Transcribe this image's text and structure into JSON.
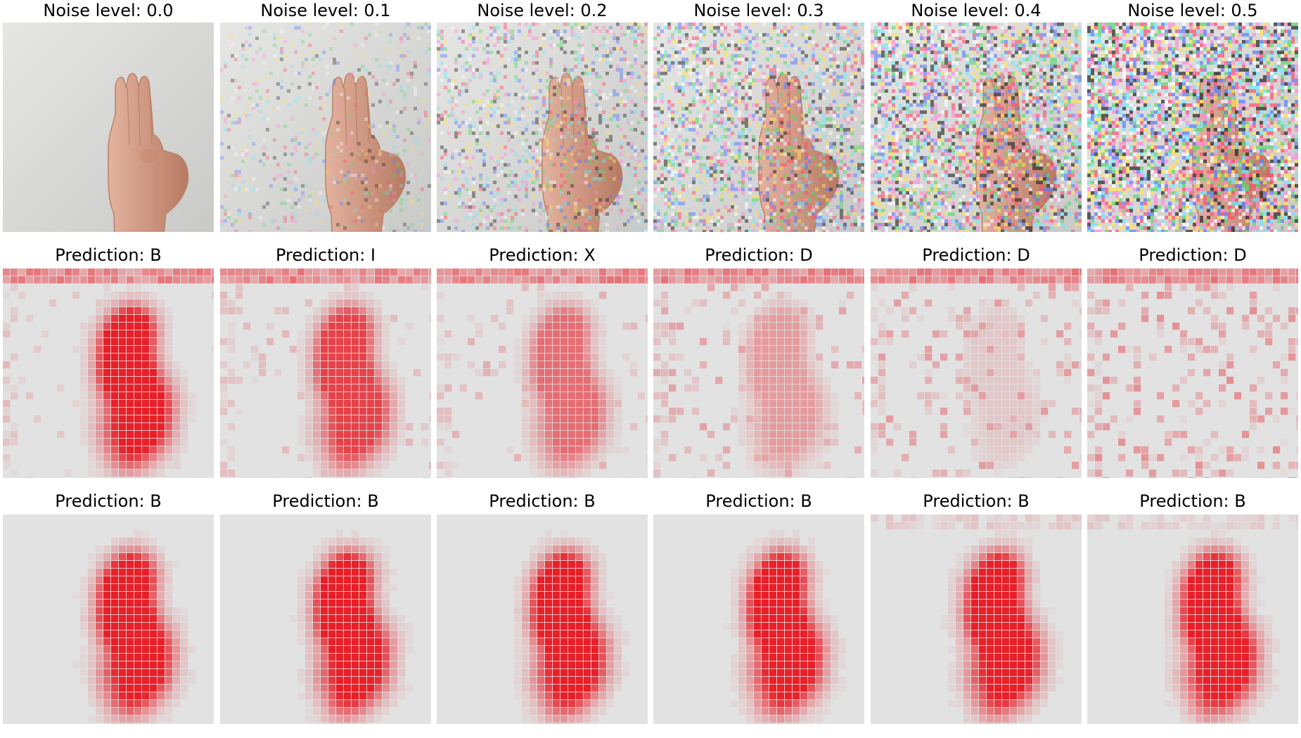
{
  "palette": {
    "background": "#ffffff",
    "wall": "#d4d4d2",
    "skin": "#d5a088",
    "skin_shadow": "#b77a63",
    "heat_base": "#dddddd",
    "heat_red": "#e8141e"
  },
  "rows": [
    {
      "kind": "noisy-input",
      "panels": [
        {
          "title": "Noise level: 0.0",
          "noise": 0.0
        },
        {
          "title": "Noise level: 0.1",
          "noise": 0.1
        },
        {
          "title": "Noise level: 0.2",
          "noise": 0.2
        },
        {
          "title": "Noise level: 0.3",
          "noise": 0.3
        },
        {
          "title": "Noise level: 0.4",
          "noise": 0.4
        },
        {
          "title": "Noise level: 0.5",
          "noise": 0.5
        }
      ]
    },
    {
      "kind": "baseline-saliency",
      "panels": [
        {
          "title": "Prediction: B",
          "noise": 0.0
        },
        {
          "title": "Prediction: I",
          "noise": 0.1
        },
        {
          "title": "Prediction: X",
          "noise": 0.2
        },
        {
          "title": "Prediction: D",
          "noise": 0.3
        },
        {
          "title": "Prediction: D",
          "noise": 0.4
        },
        {
          "title": "Prediction: D",
          "noise": 0.5
        }
      ]
    },
    {
      "kind": "robust-saliency",
      "panels": [
        {
          "title": "Prediction: B",
          "noise": 0.0
        },
        {
          "title": "Prediction: B",
          "noise": 0.1
        },
        {
          "title": "Prediction: B",
          "noise": 0.2
        },
        {
          "title": "Prediction: B",
          "noise": 0.3
        },
        {
          "title": "Prediction: B",
          "noise": 0.4
        },
        {
          "title": "Prediction: B",
          "noise": 0.5
        }
      ]
    }
  ]
}
